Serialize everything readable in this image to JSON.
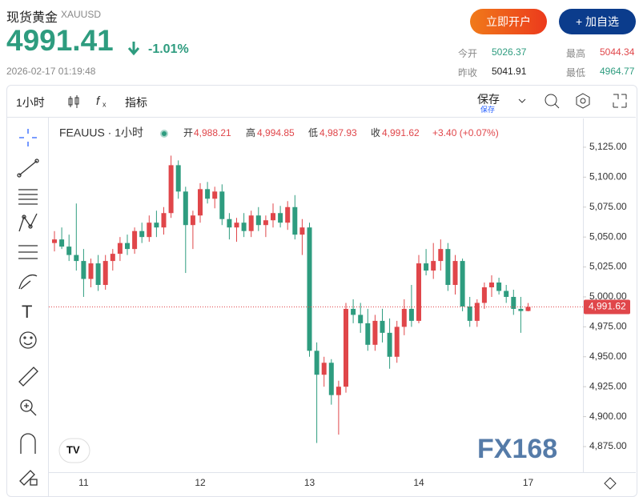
{
  "header": {
    "title": "现货黄金",
    "symbol": "XAUUSD",
    "price": "4991.41",
    "change": "-1.01%",
    "datetime": "2026-02-17 01:19:48",
    "open_account": "立即开户",
    "add_watch": "+ 加自选",
    "stats": [
      {
        "label": "今开",
        "value": "5026.37"
      },
      {
        "label": "最高",
        "value": "5044.34"
      },
      {
        "label": "昨收",
        "value": "5041.91"
      },
      {
        "label": "最低",
        "value": "4964.77"
      }
    ]
  },
  "toolbar": {
    "interval": "1小时",
    "indicators": "指标",
    "save": "保存",
    "save_sub": "保存"
  },
  "legend": {
    "name": "FEAUUS · 1小时",
    "open_label": "开",
    "open": "4,988.21",
    "high_label": "高",
    "high": "4,994.85",
    "low_label": "低",
    "low": "4,987.93",
    "close_label": "收",
    "close": "4,991.62",
    "change": "+3.40 (+0.07%)"
  },
  "watermark": "FX168",
  "chart_data": {
    "type": "candlestick",
    "up_color": "#e0464a",
    "down_color": "#2e9c7f",
    "grid": false,
    "ylim": [
      4853.6,
      5147.7
    ],
    "yticks": [
      {
        "value": 4875,
        "label": "4,875.00"
      },
      {
        "value": 4900,
        "label": "4,900.00"
      },
      {
        "value": 4925,
        "label": "4,925.00"
      },
      {
        "value": 4950,
        "label": "4,950.00"
      },
      {
        "value": 4975,
        "label": "4,975.00"
      },
      {
        "value": 5000,
        "label": "5,000.00"
      },
      {
        "value": 5025,
        "label": "5,025.00"
      },
      {
        "value": 5050,
        "label": "5,050.00"
      },
      {
        "value": 5075,
        "label": "5,075.00"
      },
      {
        "value": 5100,
        "label": "5,100.00"
      },
      {
        "value": 5125,
        "label": "5,125.00"
      }
    ],
    "last_price": {
      "value": 4991.62,
      "label": "4,991.62"
    },
    "categories": [
      null,
      null,
      null,
      null,
      "11",
      null,
      null,
      null,
      null,
      null,
      null,
      null,
      null,
      null,
      null,
      null,
      null,
      null,
      null,
      null,
      "12",
      null,
      null,
      null,
      null,
      null,
      null,
      null,
      null,
      null,
      null,
      null,
      null,
      null,
      null,
      "13",
      null,
      null,
      null,
      null,
      null,
      null,
      null,
      null,
      null,
      null,
      null,
      null,
      null,
      null,
      "14",
      null,
      null,
      null,
      null,
      null,
      null,
      null,
      null,
      null,
      null,
      null,
      null,
      null,
      null,
      "17"
    ],
    "candles": [
      [
        5045,
        5055,
        5038,
        5048
      ],
      [
        5048,
        5058,
        5040,
        5042
      ],
      [
        5042,
        5052,
        5030,
        5035
      ],
      [
        5035,
        5078,
        5022,
        5030
      ],
      [
        5030,
        5040,
        5000,
        5015
      ],
      [
        5015,
        5032,
        5008,
        5028
      ],
      [
        5028,
        5035,
        5005,
        5010
      ],
      [
        5010,
        5035,
        5006,
        5030
      ],
      [
        5030,
        5040,
        5022,
        5036
      ],
      [
        5036,
        5050,
        5030,
        5045
      ],
      [
        5045,
        5052,
        5035,
        5040
      ],
      [
        5040,
        5058,
        5036,
        5055
      ],
      [
        5055,
        5062,
        5045,
        5050
      ],
      [
        5050,
        5068,
        5046,
        5062
      ],
      [
        5062,
        5072,
        5050,
        5058
      ],
      [
        5058,
        5075,
        5052,
        5070
      ],
      [
        5070,
        5118,
        5066,
        5110
      ],
      [
        5110,
        5114,
        5082,
        5088
      ],
      [
        5088,
        5092,
        5020,
        5060
      ],
      [
        5060,
        5072,
        5040,
        5068
      ],
      [
        5068,
        5095,
        5062,
        5090
      ],
      [
        5090,
        5096,
        5078,
        5082
      ],
      [
        5082,
        5092,
        5074,
        5088
      ],
      [
        5088,
        5094,
        5060,
        5065
      ],
      [
        5065,
        5070,
        5048,
        5058
      ],
      [
        5058,
        5066,
        5046,
        5062
      ],
      [
        5062,
        5070,
        5050,
        5055
      ],
      [
        5055,
        5072,
        5050,
        5068
      ],
      [
        5068,
        5075,
        5055,
        5060
      ],
      [
        5060,
        5068,
        5050,
        5064
      ],
      [
        5064,
        5078,
        5058,
        5070
      ],
      [
        5070,
        5076,
        5058,
        5062
      ],
      [
        5062,
        5080,
        5056,
        5075
      ],
      [
        5075,
        5085,
        5048,
        5052
      ],
      [
        5052,
        5065,
        5035,
        5058
      ],
      [
        5058,
        5062,
        4950,
        4955
      ],
      [
        4955,
        4962,
        4878,
        4935
      ],
      [
        4935,
        4950,
        4925,
        4945
      ],
      [
        4945,
        4948,
        4910,
        4918
      ],
      [
        4918,
        4930,
        4885,
        4925
      ],
      [
        4925,
        4995,
        4920,
        4990
      ],
      [
        4990,
        4998,
        4978,
        4985
      ],
      [
        4985,
        4995,
        4970,
        4978
      ],
      [
        4978,
        4990,
        4955,
        4960
      ],
      [
        4960,
        4985,
        4955,
        4980
      ],
      [
        4980,
        4990,
        4962,
        4970
      ],
      [
        4970,
        4982,
        4940,
        4950
      ],
      [
        4950,
        4980,
        4945,
        4975
      ],
      [
        4975,
        4998,
        4968,
        4990
      ],
      [
        4990,
        5010,
        4975,
        4980
      ],
      [
        4980,
        5035,
        4978,
        5028
      ],
      [
        5028,
        5040,
        5018,
        5022
      ],
      [
        5022,
        5045,
        5015,
        5030
      ],
      [
        5030,
        5048,
        5022,
        5040
      ],
      [
        5040,
        5045,
        5005,
        5010
      ],
      [
        5010,
        5035,
        5002,
        5030
      ],
      [
        5030,
        5032,
        4988,
        4992
      ],
      [
        4992,
        5000,
        4975,
        4980
      ],
      [
        4980,
        4998,
        4975,
        4995
      ],
      [
        4995,
        5012,
        4990,
        5008
      ],
      [
        5008,
        5018,
        5000,
        5012
      ],
      [
        5012,
        5016,
        5002,
        5005
      ],
      [
        5005,
        5010,
        4995,
        5000
      ],
      [
        5000,
        5006,
        4985,
        4990
      ],
      [
        4990,
        5000,
        4970,
        4988.21
      ],
      [
        4988.21,
        4994.85,
        4987.93,
        4991.62
      ]
    ]
  }
}
